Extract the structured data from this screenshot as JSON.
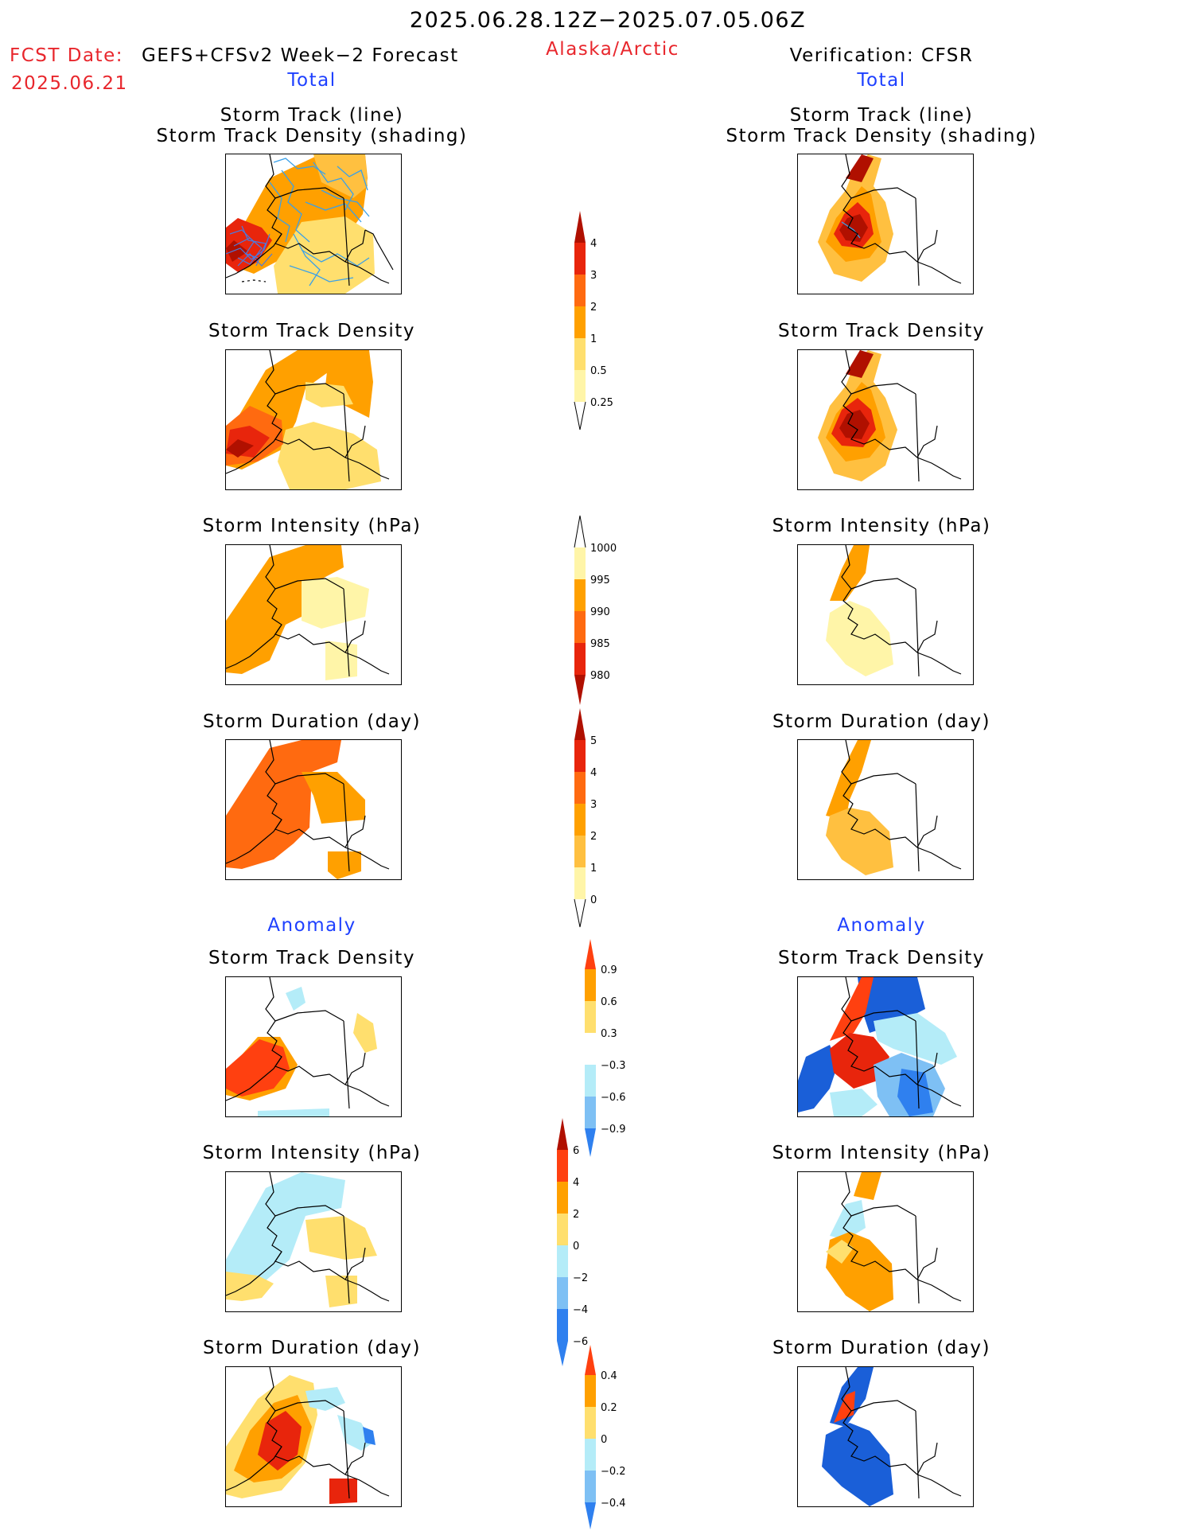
{
  "header": {
    "period": "2025.06.28.12Z−2025.07.05.06Z",
    "fcst_label": "FCST Date:",
    "fcst_model": "GEFS+CFSv2 Week−2 Forecast",
    "fcst_date": "2025.06.21",
    "region": "Alaska/Arctic",
    "verification": "Verification: CFSR"
  },
  "sections": {
    "total": "Total",
    "anomaly": "Anomaly"
  },
  "titles": {
    "track_line": "Storm Track (line)",
    "track_shading": "Storm Track Density (shading)",
    "density": "Storm Track Density",
    "intensity": "Storm Intensity (hPa)",
    "duration": "Storm Duration (day)"
  },
  "colors": {
    "pale_yellow": "#fff5a8",
    "light_yellow": "#ffdf6e",
    "light_orange": "#ffc040",
    "orange": "#ffa000",
    "dark_orange": "#ff6a10",
    "red": "#e8250c",
    "dark_red": "#b01000",
    "very_dark_red": "#8c0000",
    "light_cyan": "#b4ecf8",
    "light_blue": "#7ec0f4",
    "blue": "#2f80ef",
    "dark_blue": "#1a5fd8",
    "track_line": "#3aa0e8"
  },
  "colorbars": [
    {
      "id": "track-density",
      "labels": [
        "4",
        "3",
        "2",
        "1",
        "0.5",
        "0.25"
      ]
    },
    {
      "id": "intensity",
      "labels": [
        "1000",
        "995",
        "990",
        "985",
        "980"
      ]
    },
    {
      "id": "duration",
      "labels": [
        "5",
        "4",
        "3",
        "2",
        "1",
        "0"
      ]
    },
    {
      "id": "density-anomaly",
      "labels": [
        "0.9",
        "0.6",
        "0.3",
        "−0.3",
        "−0.6",
        "−0.9"
      ]
    },
    {
      "id": "intensity-anomaly",
      "labels": [
        "6",
        "4",
        "2",
        "0",
        "−2",
        "−4",
        "−6"
      ]
    },
    {
      "id": "duration-anomaly",
      "labels": [
        "0.4",
        "0.2",
        "0",
        "−0.2",
        "−0.4"
      ]
    }
  ]
}
